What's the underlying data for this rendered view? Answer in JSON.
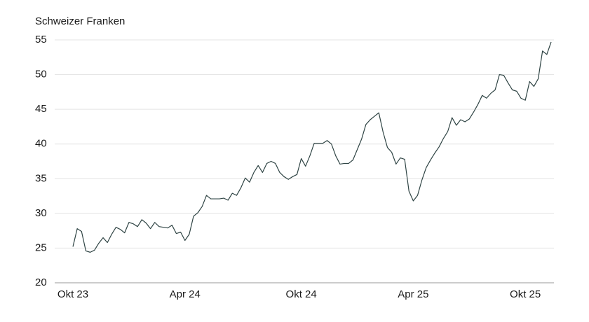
{
  "chart_data": {
    "type": "line",
    "y_label": "Schweizer Franken",
    "categories": [
      "Okt 23",
      null,
      null,
      null,
      null,
      null,
      null,
      null,
      null,
      null,
      null,
      null,
      null,
      null,
      null,
      null,
      null,
      null,
      null,
      null,
      null,
      null,
      null,
      null,
      null,
      null,
      "Apr 24",
      null,
      null,
      null,
      null,
      null,
      null,
      null,
      null,
      null,
      null,
      null,
      null,
      null,
      null,
      null,
      null,
      null,
      null,
      null,
      null,
      null,
      null,
      null,
      null,
      null,
      null,
      "Okt 24",
      null,
      null,
      null,
      null,
      null,
      null,
      null,
      null,
      null,
      null,
      null,
      null,
      null,
      null,
      null,
      null,
      null,
      null,
      null,
      null,
      null,
      null,
      null,
      null,
      null,
      "Apr 25",
      null,
      null,
      null,
      null,
      null,
      null,
      null,
      null,
      null,
      null,
      null,
      null,
      null,
      null,
      null,
      null,
      null,
      null,
      null,
      null,
      null,
      null,
      null,
      null,
      null,
      "Okt 25",
      null,
      null,
      null,
      null,
      null,
      null
    ],
    "values": [
      25.2,
      27.8,
      27.4,
      24.6,
      24.4,
      24.7,
      25.7,
      26.5,
      25.8,
      27.0,
      28.0,
      27.7,
      27.2,
      28.7,
      28.5,
      28.1,
      29.1,
      28.6,
      27.8,
      28.7,
      28.1,
      28.0,
      27.9,
      28.3,
      27.1,
      27.3,
      26.1,
      27.0,
      29.6,
      30.1,
      31.0,
      32.6,
      32.1,
      32.1,
      32.1,
      32.2,
      31.9,
      32.9,
      32.6,
      33.7,
      35.1,
      34.5,
      35.9,
      36.9,
      35.9,
      37.2,
      37.5,
      37.2,
      35.9,
      35.3,
      34.9,
      35.3,
      35.6,
      37.9,
      36.8,
      38.3,
      40.1,
      40.1,
      40.1,
      40.5,
      40.0,
      38.3,
      37.1,
      37.2,
      37.2,
      37.7,
      39.2,
      40.7,
      42.8,
      43.5,
      44.0,
      44.5,
      41.7,
      39.5,
      38.8,
      37.1,
      38.0,
      37.8,
      33.2,
      31.8,
      32.6,
      34.8,
      36.6,
      37.7,
      38.7,
      39.6,
      40.8,
      41.8,
      43.8,
      42.7,
      43.5,
      43.2,
      43.6,
      44.6,
      45.7,
      47.0,
      46.6,
      47.3,
      47.8,
      50.0,
      49.9,
      48.8,
      47.8,
      47.6,
      46.6,
      46.3,
      49.0,
      48.3,
      49.4,
      53.4,
      52.9,
      54.7
    ],
    "color": "#2f4444",
    "ylim": [
      20,
      55
    ],
    "yticks": [
      20,
      25,
      30,
      35,
      40,
      45,
      50,
      55
    ],
    "grid": true
  }
}
